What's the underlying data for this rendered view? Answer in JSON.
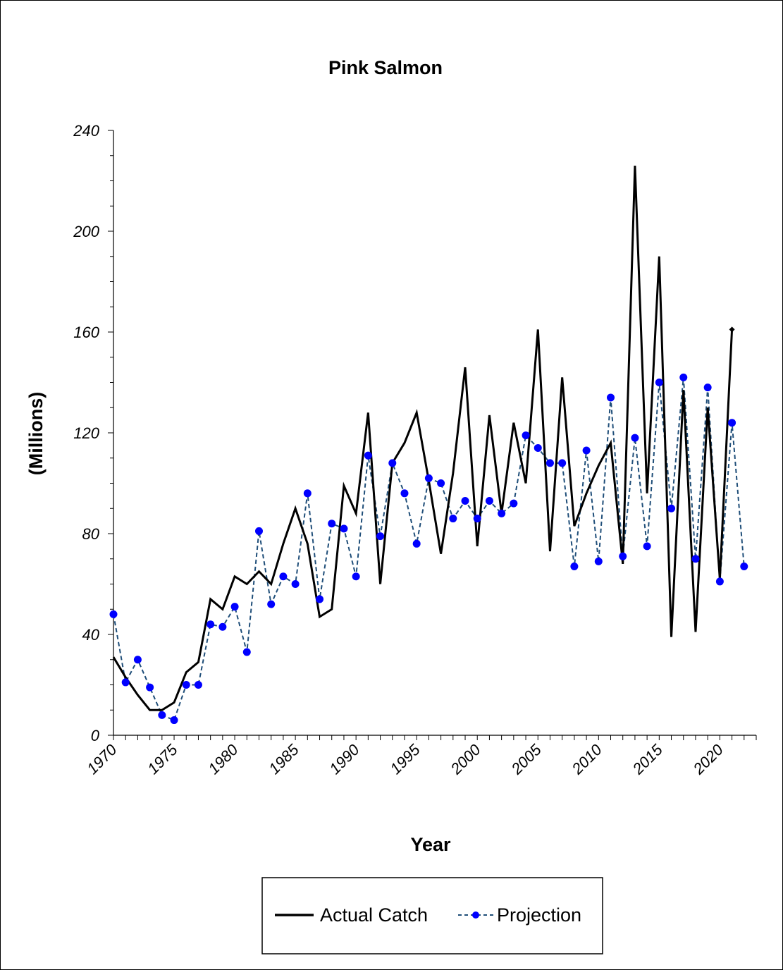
{
  "chart_data": {
    "type": "line",
    "title": "Pink Salmon",
    "xlabel": "Year",
    "ylabel": "(Millions)",
    "xlim": [
      1970,
      2023
    ],
    "ylim": [
      0,
      240
    ],
    "yticks": [
      0,
      40,
      80,
      120,
      160,
      200,
      240
    ],
    "ytick_labels": [
      "0",
      "40",
      "80",
      "120",
      "160",
      "200",
      "240"
    ],
    "xtick_labels": [
      "1970",
      "1975",
      "1980",
      "1985",
      "1990",
      "1995",
      "2000",
      "2005",
      "2010",
      "2015",
      "2020"
    ],
    "grid": false,
    "legend_position": "bottom",
    "series": [
      {
        "name": "Actual Catch",
        "color": "#000000",
        "style": "solid",
        "x": [
          1970,
          1971,
          1972,
          1973,
          1974,
          1975,
          1976,
          1977,
          1978,
          1979,
          1980,
          1981,
          1982,
          1983,
          1984,
          1985,
          1986,
          1987,
          1988,
          1989,
          1990,
          1991,
          1992,
          1993,
          1994,
          1995,
          1996,
          1997,
          1998,
          1999,
          2000,
          2001,
          2002,
          2003,
          2004,
          2005,
          2006,
          2007,
          2008,
          2009,
          2010,
          2011,
          2012,
          2013,
          2014,
          2015,
          2016,
          2017,
          2018,
          2019,
          2020,
          2021
        ],
        "values": [
          31,
          23,
          16,
          10,
          10,
          13,
          25,
          29,
          54,
          50,
          63,
          60,
          65,
          60,
          76,
          90,
          76,
          47,
          50,
          99,
          88,
          128,
          60,
          108,
          116,
          128,
          101,
          72,
          104,
          146,
          75,
          127,
          88,
          124,
          100,
          161,
          73,
          142,
          83,
          96,
          107,
          116,
          68,
          226,
          96,
          190,
          39,
          137,
          41,
          130,
          62,
          161
        ]
      },
      {
        "name": "Projection",
        "color": "#1f4e79",
        "marker_color": "#0000ff",
        "style": "dashed",
        "x": [
          1970,
          1971,
          1972,
          1973,
          1974,
          1975,
          1976,
          1977,
          1978,
          1979,
          1980,
          1981,
          1982,
          1983,
          1984,
          1985,
          1986,
          1987,
          1988,
          1989,
          1990,
          1991,
          1992,
          1993,
          1994,
          1995,
          1996,
          1997,
          1998,
          1999,
          2000,
          2001,
          2002,
          2003,
          2004,
          2005,
          2006,
          2007,
          2008,
          2009,
          2010,
          2011,
          2012,
          2013,
          2014,
          2015,
          2016,
          2017,
          2018,
          2019,
          2020,
          2021,
          2022
        ],
        "values": [
          48,
          21,
          30,
          19,
          8,
          6,
          20,
          20,
          44,
          43,
          51,
          33,
          81,
          52,
          63,
          60,
          96,
          54,
          84,
          82,
          63,
          111,
          79,
          108,
          96,
          76,
          102,
          100,
          86,
          93,
          86,
          93,
          88,
          92,
          119,
          114,
          108,
          108,
          67,
          113,
          69,
          134,
          71,
          118,
          75,
          140,
          90,
          142,
          70,
          138,
          61,
          124,
          67
        ]
      }
    ]
  },
  "legend": {
    "actual_label": "Actual Catch",
    "projection_label": "Projection"
  }
}
